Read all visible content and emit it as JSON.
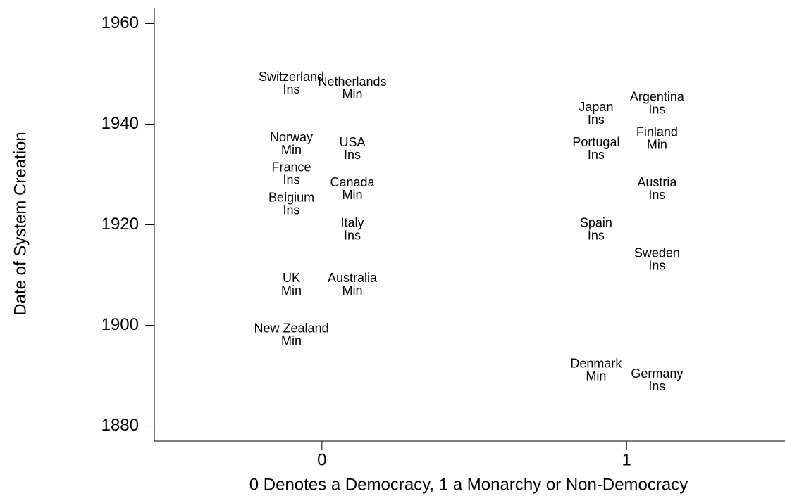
{
  "chart_data": {
    "type": "scatter",
    "xlabel": "0 Denotes a Democracy, 1 a Monarchy or Non-Democracy",
    "ylabel": "Date of System Creation",
    "labels": [
      "Switzerland",
      "Netherlands",
      "Norway",
      "USA",
      "France",
      "Canada",
      "Belgium",
      "Italy",
      "UK",
      "Australia",
      "New Zealand",
      "Japan",
      "Argentina",
      "Portugal",
      "Finland",
      "Austria",
      "Spain",
      "Sweden",
      "Denmark",
      "Germany"
    ],
    "types": [
      "Ins",
      "Min",
      "Min",
      "Ins",
      "Ins",
      "Min",
      "Ins",
      "Ins",
      "Min",
      "Min",
      "Min",
      "Ins",
      "Ins",
      "Ins",
      "Min",
      "Ins",
      "Ins",
      "Ins",
      "Min",
      "Ins"
    ],
    "x": [
      -0.1,
      0.1,
      -0.1,
      0.1,
      -0.1,
      0.1,
      -0.1,
      0.1,
      -0.1,
      0.1,
      -0.1,
      0.9,
      1.1,
      0.9,
      1.1,
      1.1,
      0.9,
      1.1,
      0.9,
      1.1
    ],
    "values": [
      1948,
      1947,
      1936,
      1935,
      1930,
      1927,
      1924,
      1919,
      1908,
      1908,
      1898,
      1942,
      1944,
      1935,
      1937,
      1927,
      1919,
      1913,
      1891,
      1889
    ],
    "xlim": [
      -0.55,
      1.52
    ],
    "xticks": [
      0,
      1
    ],
    "ylim": [
      1877,
      1963
    ],
    "yticks": [
      1880,
      1900,
      1920,
      1940,
      1960
    ]
  }
}
